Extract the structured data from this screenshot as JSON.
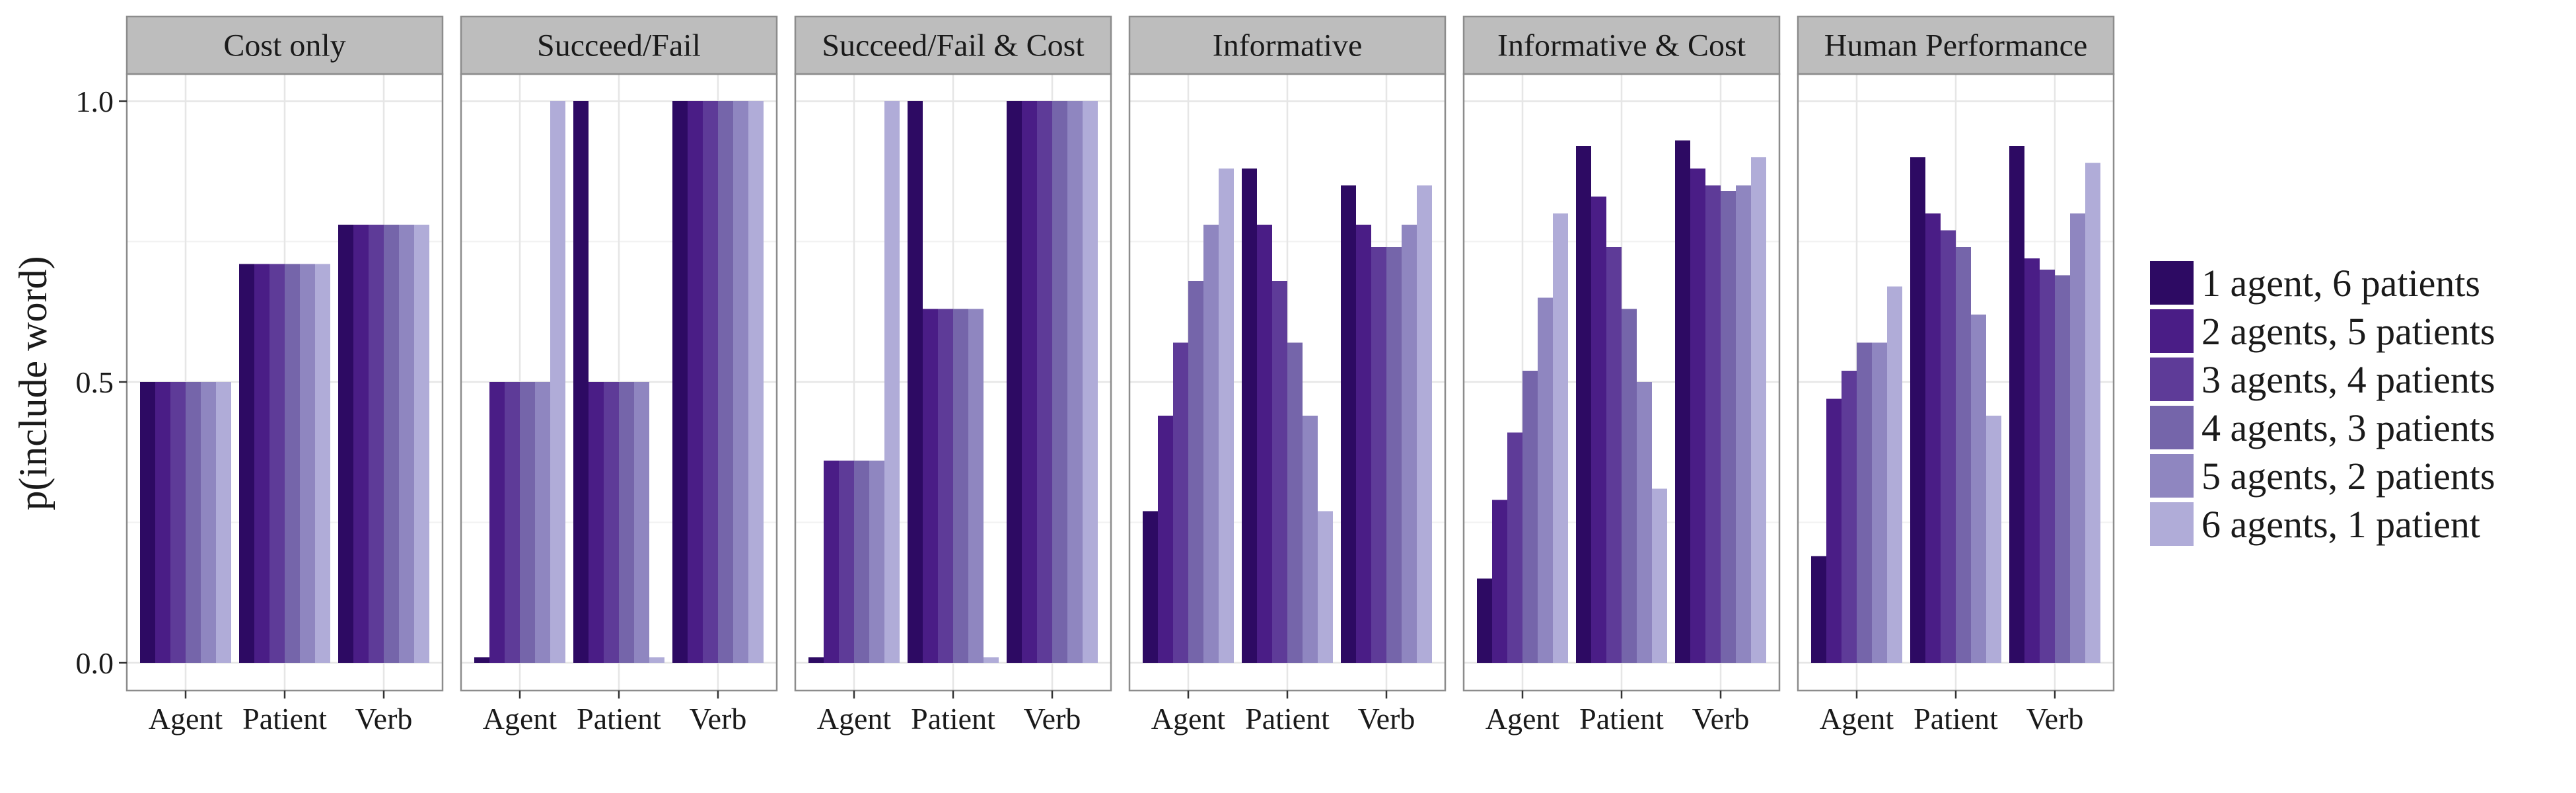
{
  "chart_data": {
    "type": "bar",
    "ylabel": "p(include word)",
    "xlabel": "",
    "ylim": [
      0,
      1.05
    ],
    "yticks": [
      0.0,
      0.5,
      1.0
    ],
    "ytick_labels": [
      "0.0",
      "0.5",
      "1.0"
    ],
    "grid": true,
    "legend_position": "right",
    "categories": [
      "Agent",
      "Patient",
      "Verb"
    ],
    "series": [
      {
        "name": "1 agent, 6 patients",
        "color": "#2d0a63"
      },
      {
        "name": "2 agents, 5 patients",
        "color": "#4a1d86"
      },
      {
        "name": "3 agents, 4 patients",
        "color": "#5e3b98"
      },
      {
        "name": "4 agents, 3 patients",
        "color": "#7565aa"
      },
      {
        "name": "5 agents, 2 patients",
        "color": "#8f86c0"
      },
      {
        "name": "6 agents, 1 patient",
        "color": "#b0acd8"
      }
    ],
    "panels": [
      {
        "title": "Cost only",
        "values": [
          [
            0.5,
            0.5,
            0.5,
            0.5,
            0.5,
            0.5
          ],
          [
            0.71,
            0.71,
            0.71,
            0.71,
            0.71,
            0.71
          ],
          [
            0.78,
            0.78,
            0.78,
            0.78,
            0.78,
            0.78
          ]
        ]
      },
      {
        "title": "Succeed/Fail",
        "values": [
          [
            0.01,
            0.5,
            0.5,
            0.5,
            0.5,
            1.0
          ],
          [
            1.0,
            0.5,
            0.5,
            0.5,
            0.5,
            0.01
          ],
          [
            1.0,
            1.0,
            1.0,
            1.0,
            1.0,
            1.0
          ]
        ]
      },
      {
        "title": "Succeed/Fail & Cost",
        "values": [
          [
            0.01,
            0.36,
            0.36,
            0.36,
            0.36,
            1.0
          ],
          [
            1.0,
            0.63,
            0.63,
            0.63,
            0.63,
            0.01
          ],
          [
            1.0,
            1.0,
            1.0,
            1.0,
            1.0,
            1.0
          ]
        ]
      },
      {
        "title": "Informative",
        "values": [
          [
            0.27,
            0.44,
            0.57,
            0.68,
            0.78,
            0.88
          ],
          [
            0.88,
            0.78,
            0.68,
            0.57,
            0.44,
            0.27
          ],
          [
            0.85,
            0.78,
            0.74,
            0.74,
            0.78,
            0.85
          ]
        ]
      },
      {
        "title": "Informative & Cost",
        "values": [
          [
            0.15,
            0.29,
            0.41,
            0.52,
            0.65,
            0.8
          ],
          [
            0.92,
            0.83,
            0.74,
            0.63,
            0.5,
            0.31
          ],
          [
            0.93,
            0.88,
            0.85,
            0.84,
            0.85,
            0.9
          ]
        ]
      },
      {
        "title": "Human Performance",
        "values": [
          [
            0.19,
            0.47,
            0.52,
            0.57,
            0.57,
            0.67
          ],
          [
            0.9,
            0.8,
            0.77,
            0.74,
            0.62,
            0.44
          ],
          [
            0.92,
            0.72,
            0.7,
            0.69,
            0.8,
            0.89
          ]
        ]
      }
    ]
  }
}
